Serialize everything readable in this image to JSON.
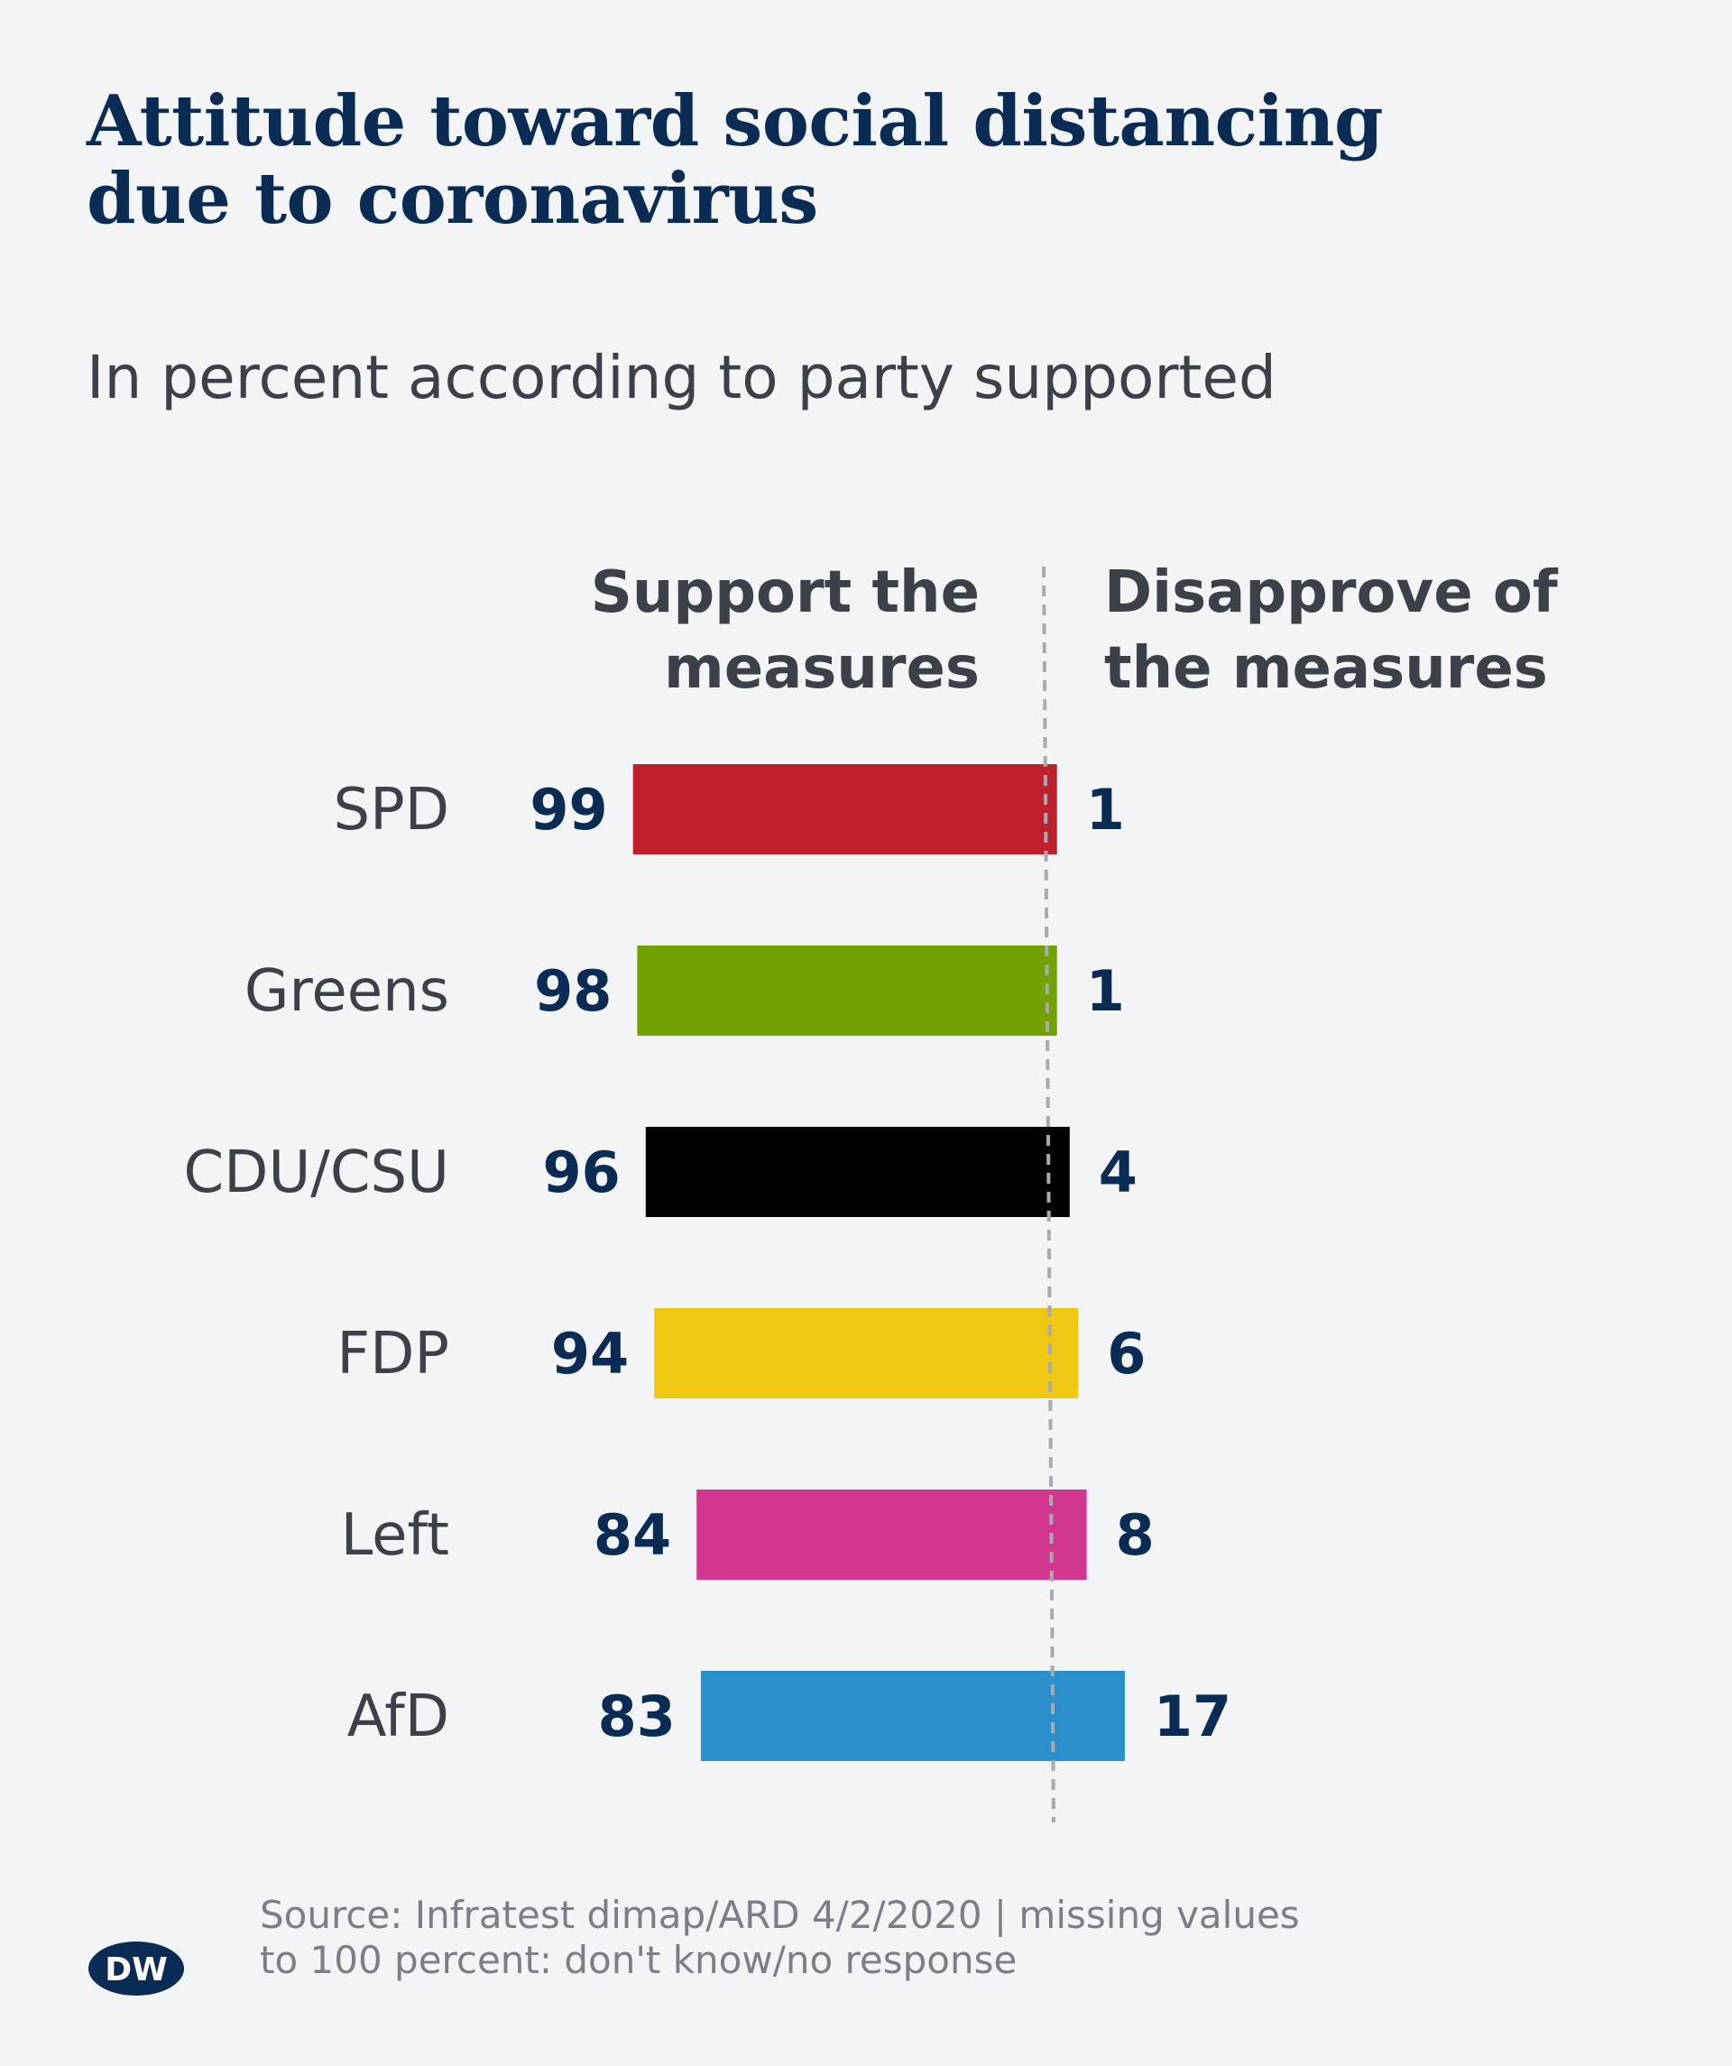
{
  "title_lines": [
    "Attitude toward social distancing",
    "due to coronavirus"
  ],
  "subtitle": "In percent according to party supported",
  "column_headers": {
    "support": [
      "Support the",
      "measures"
    ],
    "disapprove": [
      "Disapprove of",
      "the measures"
    ]
  },
  "chart_data": {
    "type": "bar",
    "orientation": "horizontal",
    "layout": "diverging",
    "categories": [
      "SPD",
      "Greens",
      "CDU/CSU",
      "FDP",
      "Left",
      "AfD"
    ],
    "series": [
      {
        "name": "Support the measures",
        "values": [
          99,
          98,
          96,
          94,
          84,
          83
        ]
      },
      {
        "name": "Disapprove of the measures",
        "values": [
          1,
          1,
          4,
          6,
          8,
          17
        ]
      }
    ],
    "colors": [
      "#be202e",
      "#71a200",
      "#000000",
      "#f0c814",
      "#d1378e",
      "#2a8fca"
    ],
    "label_color": "#0a2c54",
    "category_label_color": "#3c4049",
    "divider_color": "#a7aab0"
  },
  "source_lines": [
    "Source: Infratest dimap/ARD 4/2/2020 | missing values",
    "to 100 percent: don't know/no response"
  ],
  "logo_text": "DW"
}
